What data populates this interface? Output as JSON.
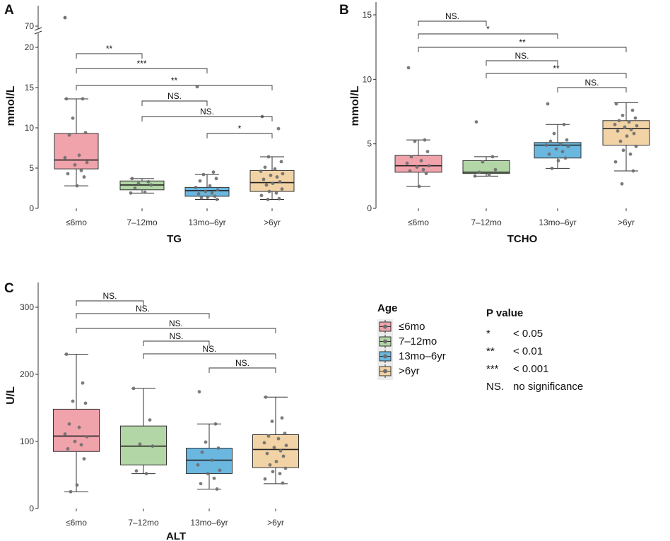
{
  "chart_data": [
    {
      "type": "boxplot",
      "panel_letter": "A",
      "title": "",
      "xlabel": "TG",
      "ylabel": "mmol/L",
      "categories": [
        "≤6mo",
        "7–12mo",
        "13mo–6yr",
        ">6yr"
      ],
      "ylim": [
        0,
        21
      ],
      "yticks": [
        0,
        5,
        10,
        15,
        20
      ],
      "axis_break": {
        "after": 20,
        "label": "70",
        "outlier_value": 70
      },
      "boxes": [
        {
          "category": "≤6mo",
          "min": 2.8,
          "q1": 4.9,
          "median": 6.0,
          "q3": 9.3,
          "max": 13.6
        },
        {
          "category": "7–12mo",
          "min": 1.9,
          "q1": 2.3,
          "median": 2.9,
          "q3": 3.4,
          "max": 3.7
        },
        {
          "category": "13mo–6yr",
          "min": 1.1,
          "q1": 1.5,
          "median": 2.2,
          "q3": 2.6,
          "max": 4.2
        },
        {
          "category": ">6yr",
          "min": 1.1,
          "q1": 2.1,
          "median": 3.2,
          "q3": 4.7,
          "max": 6.4
        }
      ],
      "points": [
        [
          13.6,
          13.6,
          11.2,
          9.4,
          9.1,
          6.6,
          6.3,
          5.7,
          5.4,
          4.7,
          4.3,
          3.9,
          2.8
        ],
        [
          3.7,
          3.3,
          3.1,
          2.9,
          2.5,
          2.0,
          1.9
        ],
        [
          15.1,
          4.5,
          4.2,
          3.7,
          3.4,
          2.8,
          2.6,
          2.3,
          2.1,
          1.9,
          1.8,
          1.5,
          1.4,
          1.3,
          1.1
        ],
        [
          11.4,
          9.9,
          6.4,
          5.8,
          5.1,
          4.9,
          4.6,
          4.3,
          4.1,
          3.9,
          3.6,
          3.3,
          3.1,
          2.9,
          2.4,
          2.1,
          1.9,
          1.6,
          1.2,
          1.1
        ]
      ],
      "outliers_above_break": [
        {
          "group": 0,
          "value": 70
        }
      ],
      "comparisons": [
        {
          "g1": 0,
          "g2": 1,
          "label": "**"
        },
        {
          "g1": 0,
          "g2": 2,
          "label": "***"
        },
        {
          "g1": 0,
          "g2": 3,
          "label": "**"
        },
        {
          "g1": 1,
          "g2": 2,
          "label": "NS."
        },
        {
          "g1": 1,
          "g2": 3,
          "label": "NS."
        },
        {
          "g1": 2,
          "g2": 3,
          "label": "*"
        }
      ]
    },
    {
      "type": "boxplot",
      "panel_letter": "B",
      "title": "",
      "xlabel": "TCHO",
      "ylabel": "mmol/L",
      "categories": [
        "≤6mo",
        "7–12mo",
        "13mo–6yr",
        ">6yr"
      ],
      "ylim": [
        0,
        16
      ],
      "yticks": [
        0,
        5,
        10,
        15
      ],
      "boxes": [
        {
          "category": "≤6mo",
          "min": 1.7,
          "q1": 2.8,
          "median": 3.3,
          "q3": 4.1,
          "max": 5.3
        },
        {
          "category": "7–12mo",
          "min": 2.5,
          "q1": 2.7,
          "median": 2.8,
          "q3": 3.7,
          "max": 4.0
        },
        {
          "category": "13mo–6yr",
          "min": 3.1,
          "q1": 3.9,
          "median": 4.9,
          "q3": 5.1,
          "max": 6.5
        },
        {
          "category": ">6yr",
          "min": 2.9,
          "q1": 4.9,
          "median": 6.2,
          "q3": 6.8,
          "max": 8.2
        }
      ],
      "points": [
        [
          10.9,
          5.3,
          5.2,
          4.4,
          4.0,
          3.7,
          3.5,
          3.3,
          3.2,
          3.0,
          2.9,
          2.7,
          1.7
        ],
        [
          6.7,
          4.0,
          3.6,
          3.0,
          2.8,
          2.6,
          2.5
        ],
        [
          8.1,
          6.5,
          5.8,
          5.3,
          5.2,
          5.0,
          4.9,
          4.8,
          4.6,
          4.4,
          4.2,
          3.9,
          3.7,
          3.1
        ],
        [
          8.1,
          7.6,
          7.2,
          7.0,
          6.8,
          6.7,
          6.5,
          6.4,
          6.3,
          6.1,
          6.0,
          5.8,
          5.6,
          5.2,
          4.8,
          4.5,
          4.2,
          3.6,
          2.9,
          1.9
        ]
      ],
      "comparisons": [
        {
          "g1": 0,
          "g2": 1,
          "label": "NS."
        },
        {
          "g1": 0,
          "g2": 2,
          "label": "*"
        },
        {
          "g1": 0,
          "g2": 3,
          "label": "**"
        },
        {
          "g1": 1,
          "g2": 2,
          "label": "NS."
        },
        {
          "g1": 1,
          "g2": 3,
          "label": "**"
        },
        {
          "g1": 2,
          "g2": 3,
          "label": "NS."
        }
      ]
    },
    {
      "type": "boxplot",
      "panel_letter": "C",
      "title": "",
      "xlabel": "ALT",
      "ylabel": "U/L",
      "categories": [
        "≤6mo",
        "7–12mo",
        "13mo–6yr",
        ">6yr"
      ],
      "ylim": [
        0,
        335
      ],
      "yticks": [
        0,
        100,
        200,
        300
      ],
      "boxes": [
        {
          "category": "≤6mo",
          "min": 25,
          "q1": 85,
          "median": 108,
          "q3": 148,
          "max": 230
        },
        {
          "category": "7–12mo",
          "min": 52,
          "q1": 65,
          "median": 93,
          "q3": 123,
          "max": 179
        },
        {
          "category": "13mo–6yr",
          "min": 29,
          "q1": 52,
          "median": 72,
          "q3": 90,
          "max": 126
        },
        {
          "category": ">6yr",
          "min": 37,
          "q1": 61,
          "median": 88,
          "q3": 110,
          "max": 166
        }
      ],
      "points": [
        [
          230,
          187,
          160,
          157,
          126,
          121,
          111,
          107,
          100,
          95,
          89,
          74,
          35,
          25
        ],
        [
          179,
          132,
          96,
          93,
          56,
          52
        ],
        [
          174,
          126,
          99,
          90,
          84,
          72,
          65,
          57,
          52,
          45,
          37,
          29
        ],
        [
          166,
          135,
          130,
          112,
          108,
          104,
          98,
          94,
          91,
          86,
          82,
          78,
          70,
          65,
          60,
          55,
          52,
          44,
          38
        ]
      ],
      "comparisons": [
        {
          "g1": 0,
          "g2": 1,
          "label": "NS."
        },
        {
          "g1": 0,
          "g2": 2,
          "label": "NS."
        },
        {
          "g1": 0,
          "g2": 3,
          "label": "NS."
        },
        {
          "g1": 1,
          "g2": 2,
          "label": "NS."
        },
        {
          "g1": 1,
          "g2": 3,
          "label": "NS."
        },
        {
          "g1": 2,
          "g2": 3,
          "label": "NS."
        }
      ]
    }
  ],
  "colors": {
    "fills": [
      "#f0a3ab",
      "#b2d6a6",
      "#6ab7e0",
      "#f1d3a6"
    ],
    "stroke": "#333333",
    "point": "#6e6e6e",
    "axis": "#333333",
    "text": "#111111"
  },
  "legend": {
    "title": "Age",
    "items": [
      "≤6mo",
      "7–12mo",
      "13mo–6yr",
      ">6yr"
    ]
  },
  "pvalue": {
    "title": "P value",
    "items": [
      {
        "symbol": "*",
        "text": "< 0.05"
      },
      {
        "symbol": "**",
        "text": "< 0.01"
      },
      {
        "symbol": "***",
        "text": "< 0.001"
      },
      {
        "symbol": "NS.",
        "text": "no significance"
      }
    ]
  }
}
